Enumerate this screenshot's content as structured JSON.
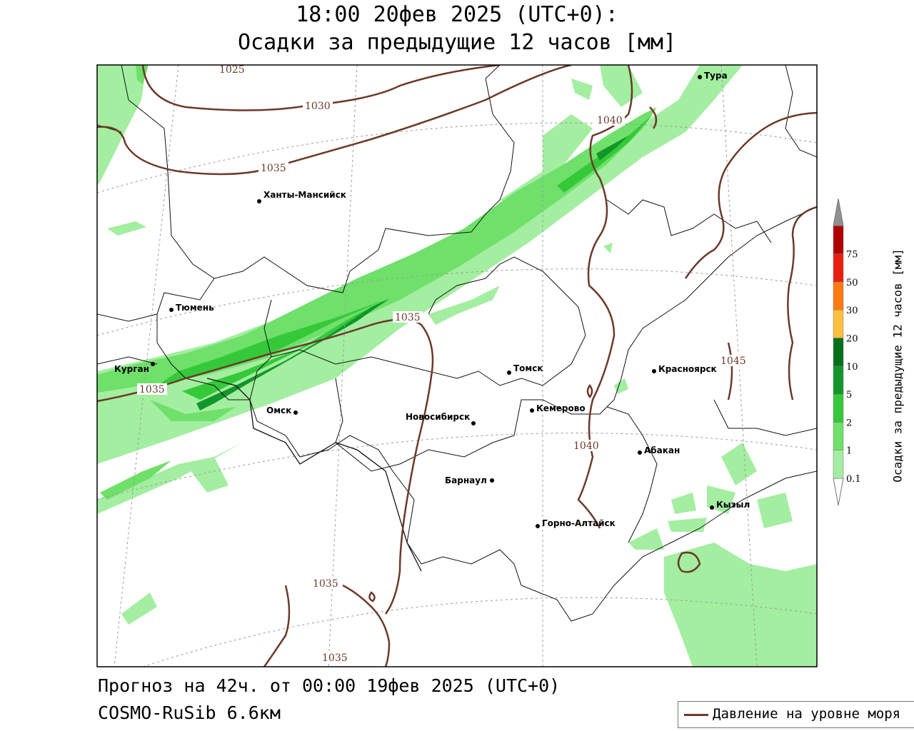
{
  "header": {
    "title_line1": "18:00 20фев 2025 (UTC+0):",
    "title_line2": "Осадки за предыдущие 12 часов [мм]"
  },
  "footer": {
    "forecast": "Прогноз на 42ч. от 00:00 19фев 2025 (UTC+0)",
    "model": "COSMO-RuSib 6.6км"
  },
  "legend": {
    "pressure_label": "Давление на уровне моря",
    "pressure_color": "#6b3a2a"
  },
  "colorbar": {
    "title": "Осадки за предыдущие 12 часов [мм]",
    "levels": [
      "0.1",
      "1",
      "2",
      "5",
      "10",
      "20",
      "30",
      "50",
      "75"
    ],
    "colors": [
      "#a3eea0",
      "#6fe06a",
      "#35c93a",
      "#12962a",
      "#05701c",
      "#ffc040",
      "#ff7a10",
      "#e81f10",
      "#b00000",
      "#909090"
    ]
  },
  "cities": [
    {
      "name": "Тура"
    },
    {
      "name": "Ханты-Мансийск"
    },
    {
      "name": "Тюмень"
    },
    {
      "name": "Курган"
    },
    {
      "name": "Омск"
    },
    {
      "name": "Томск"
    },
    {
      "name": "Новосибирск"
    },
    {
      "name": "Кемерово"
    },
    {
      "name": "Красноярск"
    },
    {
      "name": "Абакан"
    },
    {
      "name": "Барнаул"
    },
    {
      "name": "Горно-Алтайск"
    },
    {
      "name": "Кызыл"
    }
  ],
  "isobars": [
    "1025",
    "1030",
    "1035",
    "1040",
    "1035",
    "1035",
    "1045",
    "1040",
    "1035",
    "1035"
  ]
}
